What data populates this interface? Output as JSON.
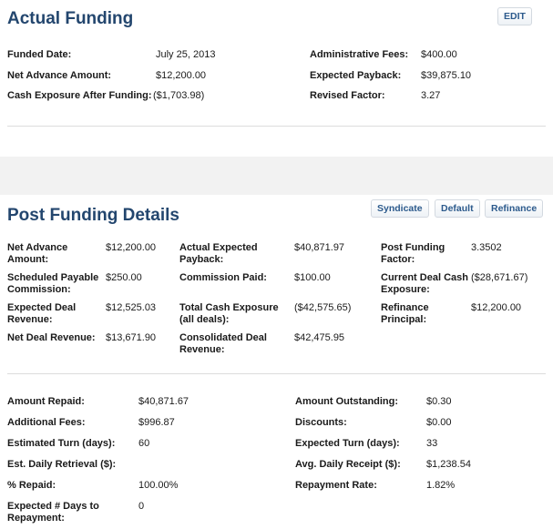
{
  "actual_funding": {
    "title": "Actual Funding",
    "edit_label": "EDIT",
    "rows": [
      {
        "label": "Funded Date:",
        "value": "July 25, 2013"
      },
      {
        "label": "Net Advance Amount:",
        "value": "$12,200.00"
      },
      {
        "label": "Cash Exposure After Funding:",
        "value": "($1,703.98)"
      },
      {
        "label": "Administrative Fees:",
        "value": "$400.00"
      },
      {
        "label": "Expected Payback:",
        "value": "$39,875.10"
      },
      {
        "label": "Revised Factor:",
        "value": "3.27"
      }
    ]
  },
  "post_funding": {
    "title": "Post Funding Details",
    "buttons": {
      "syndicate": "Syndicate",
      "default": "Default",
      "refinance": "Refinance"
    },
    "cols": [
      [
        {
          "label": "Net Advance Amount:",
          "value": "$12,200.00"
        },
        {
          "label": "Scheduled Payable Commission:",
          "value": "$250.00"
        },
        {
          "label": "Expected Deal Revenue:",
          "value": "$12,525.03"
        },
        {
          "label": "Net Deal Revenue:",
          "value": "$13,671.90"
        }
      ],
      [
        {
          "label": "Actual Expected Payback:",
          "value": "$40,871.97"
        },
        {
          "label": "Commission Paid:",
          "value": "$100.00"
        },
        {
          "label": "Total Cash Exposure (all deals):",
          "value": "($42,575.65)"
        },
        {
          "label": "Consolidated Deal Revenue:",
          "value": "$42,475.95"
        }
      ],
      [
        {
          "label": "Post Funding Factor:",
          "value": "3.3502"
        },
        {
          "label": "Current Deal Cash Exposure:",
          "value": "($28,671.67)"
        },
        {
          "label": "Refinance Principal:",
          "value": "$12,200.00"
        }
      ]
    ],
    "repay_left": [
      {
        "label": "Amount Repaid:",
        "value": "$40,871.67"
      },
      {
        "label": "Additional Fees:",
        "value": "$996.87"
      },
      {
        "label": "Estimated Turn (days):",
        "value": "60"
      },
      {
        "label": "Est. Daily Retrieval ($):",
        "value": ""
      },
      {
        "label": "% Repaid:",
        "value": "100.00%"
      },
      {
        "label": "Expected # Days to Repayment:",
        "value": "0"
      }
    ],
    "repay_right": [
      {
        "label": "Amount Outstanding:",
        "value": "$0.30"
      },
      {
        "label": "Discounts:",
        "value": "$0.00"
      },
      {
        "label": "Expected Turn (days):",
        "value": "33"
      },
      {
        "label": "Avg. Daily Receipt ($):",
        "value": "$1,238.54"
      },
      {
        "label": "Repayment Rate:",
        "value": "1.82%"
      }
    ]
  }
}
